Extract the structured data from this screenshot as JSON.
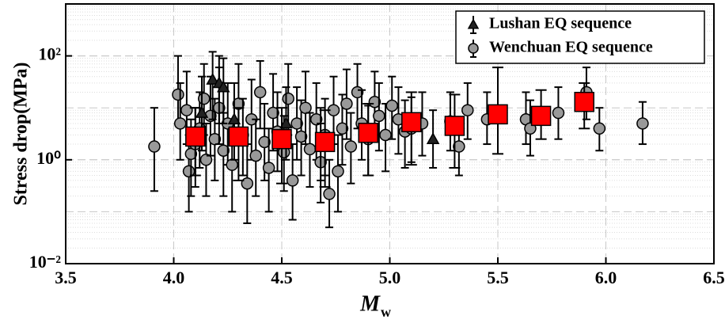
{
  "chart_data": {
    "type": "scatter",
    "ylabel": "Stress drop(MPa)",
    "xlabel": {
      "text": "M",
      "subscript": "w"
    },
    "xlim": [
      3.5,
      6.5
    ],
    "xticks": [
      3.5,
      {
        "value": 4,
        "label": "4.0"
      },
      4.5,
      {
        "value": 5,
        "label": "5.0"
      },
      5.5,
      {
        "value": 6,
        "label": "6.0"
      },
      6.5
    ],
    "ylim": [
      0.01,
      1000
    ],
    "yscale": "log",
    "yticks": [
      {
        "value": 0.01,
        "label": "10⁻²"
      },
      {
        "value": 1,
        "label": "10⁰"
      },
      {
        "value": 100,
        "label": "10²"
      }
    ],
    "grid": true,
    "minor_grid": true,
    "legend_position": "upper right",
    "series": [
      {
        "name": "Lushan EQ sequence",
        "marker": "triangle",
        "color": "#222222",
        "x": [
          4.13,
          4.18,
          4.21,
          4.23,
          4.28,
          4.52,
          4.68,
          5.2
        ],
        "values": [
          8,
          35,
          30,
          25,
          6,
          5,
          2,
          2.5
        ],
        "lower": [
          1.5,
          6,
          5,
          5,
          1,
          1,
          0.4,
          0.7
        ],
        "upper": [
          40,
          120,
          100,
          90,
          30,
          25,
          10,
          9
        ]
      },
      {
        "name": "Wenchuan EQ sequence",
        "marker": "circle",
        "color": "#999999",
        "x": [
          3.91,
          4.02,
          4.03,
          4.06,
          4.07,
          4.08,
          4.1,
          4.12,
          4.14,
          4.15,
          4.17,
          4.19,
          4.21,
          4.23,
          4.25,
          4.27,
          4.3,
          4.32,
          4.34,
          4.36,
          4.38,
          4.4,
          4.42,
          4.44,
          4.46,
          4.48,
          4.51,
          4.53,
          4.55,
          4.57,
          4.59,
          4.61,
          4.63,
          4.66,
          4.68,
          4.7,
          4.72,
          4.74,
          4.76,
          4.78,
          4.8,
          4.82,
          4.85,
          4.87,
          4.9,
          4.93,
          4.95,
          4.98,
          5.01,
          5.04,
          5.07,
          5.1,
          5.15,
          5.28,
          5.32,
          5.36,
          5.45,
          5.63,
          5.65,
          5.78,
          5.91,
          5.97,
          6.17
        ],
        "values": [
          1.8,
          18,
          5,
          9,
          0.6,
          1.3,
          2,
          4,
          15,
          1,
          7,
          2.5,
          10,
          1.5,
          5,
          0.8,
          12,
          3,
          0.35,
          6,
          1.2,
          20,
          2.2,
          0.7,
          8,
          3.5,
          1.4,
          15,
          0.4,
          5,
          2.8,
          10,
          1.6,
          6,
          0.9,
          3,
          0.22,
          9,
          0.6,
          4,
          12,
          1.8,
          20,
          5,
          2.5,
          13,
          7,
          3,
          11,
          6,
          3.5,
          4,
          5,
          5.5,
          1.8,
          9,
          6,
          6,
          4,
          8,
          20,
          4,
          5
        ],
        "lower": [
          0.25,
          5,
          1,
          2,
          0.1,
          0.2,
          0.3,
          0.7,
          3,
          0.2,
          1.2,
          0.4,
          2,
          0.2,
          0.8,
          0.1,
          2,
          0.5,
          0.06,
          1,
          0.2,
          4,
          0.4,
          0.1,
          1.5,
          0.6,
          0.25,
          3,
          0.07,
          1,
          0.5,
          2,
          0.3,
          1,
          0.15,
          0.5,
          0.05,
          2,
          0.1,
          0.8,
          2.5,
          0.35,
          4,
          1,
          0.5,
          3,
          1.5,
          0.6,
          2.5,
          1.3,
          0.7,
          0.9,
          1.2,
          1.5,
          0.5,
          2.5,
          2,
          2,
          1.2,
          2.5,
          6,
          1.5,
          2
        ],
        "upper": [
          10,
          100,
          30,
          50,
          3,
          6,
          10,
          20,
          70,
          5,
          40,
          15,
          60,
          8,
          30,
          4,
          70,
          15,
          2,
          35,
          6,
          80,
          12,
          4,
          45,
          20,
          7,
          70,
          2,
          25,
          14,
          50,
          8,
          30,
          5,
          15,
          1,
          40,
          3,
          18,
          55,
          8,
          70,
          22,
          11,
          50,
          30,
          12,
          40,
          25,
          14,
          16,
          20,
          20,
          6,
          30,
          20,
          20,
          14,
          25,
          60,
          10,
          13
        ]
      },
      {
        "marker": "square",
        "color": "#ff0000",
        "x": [
          4.1,
          4.3,
          4.5,
          4.7,
          4.9,
          5.1,
          5.3,
          5.5,
          5.7,
          5.9
        ],
        "values": [
          2.8,
          2.8,
          2.5,
          2.2,
          3.3,
          5.3,
          4.5,
          7.5,
          7,
          13
        ],
        "lower": [
          0.5,
          0.4,
          0.35,
          0.3,
          0.5,
          0.8,
          0.7,
          1.3,
          2.5,
          4
        ],
        "upper": [
          10,
          10,
          10,
          9,
          12,
          20,
          18,
          60,
          22,
          30
        ]
      }
    ]
  }
}
